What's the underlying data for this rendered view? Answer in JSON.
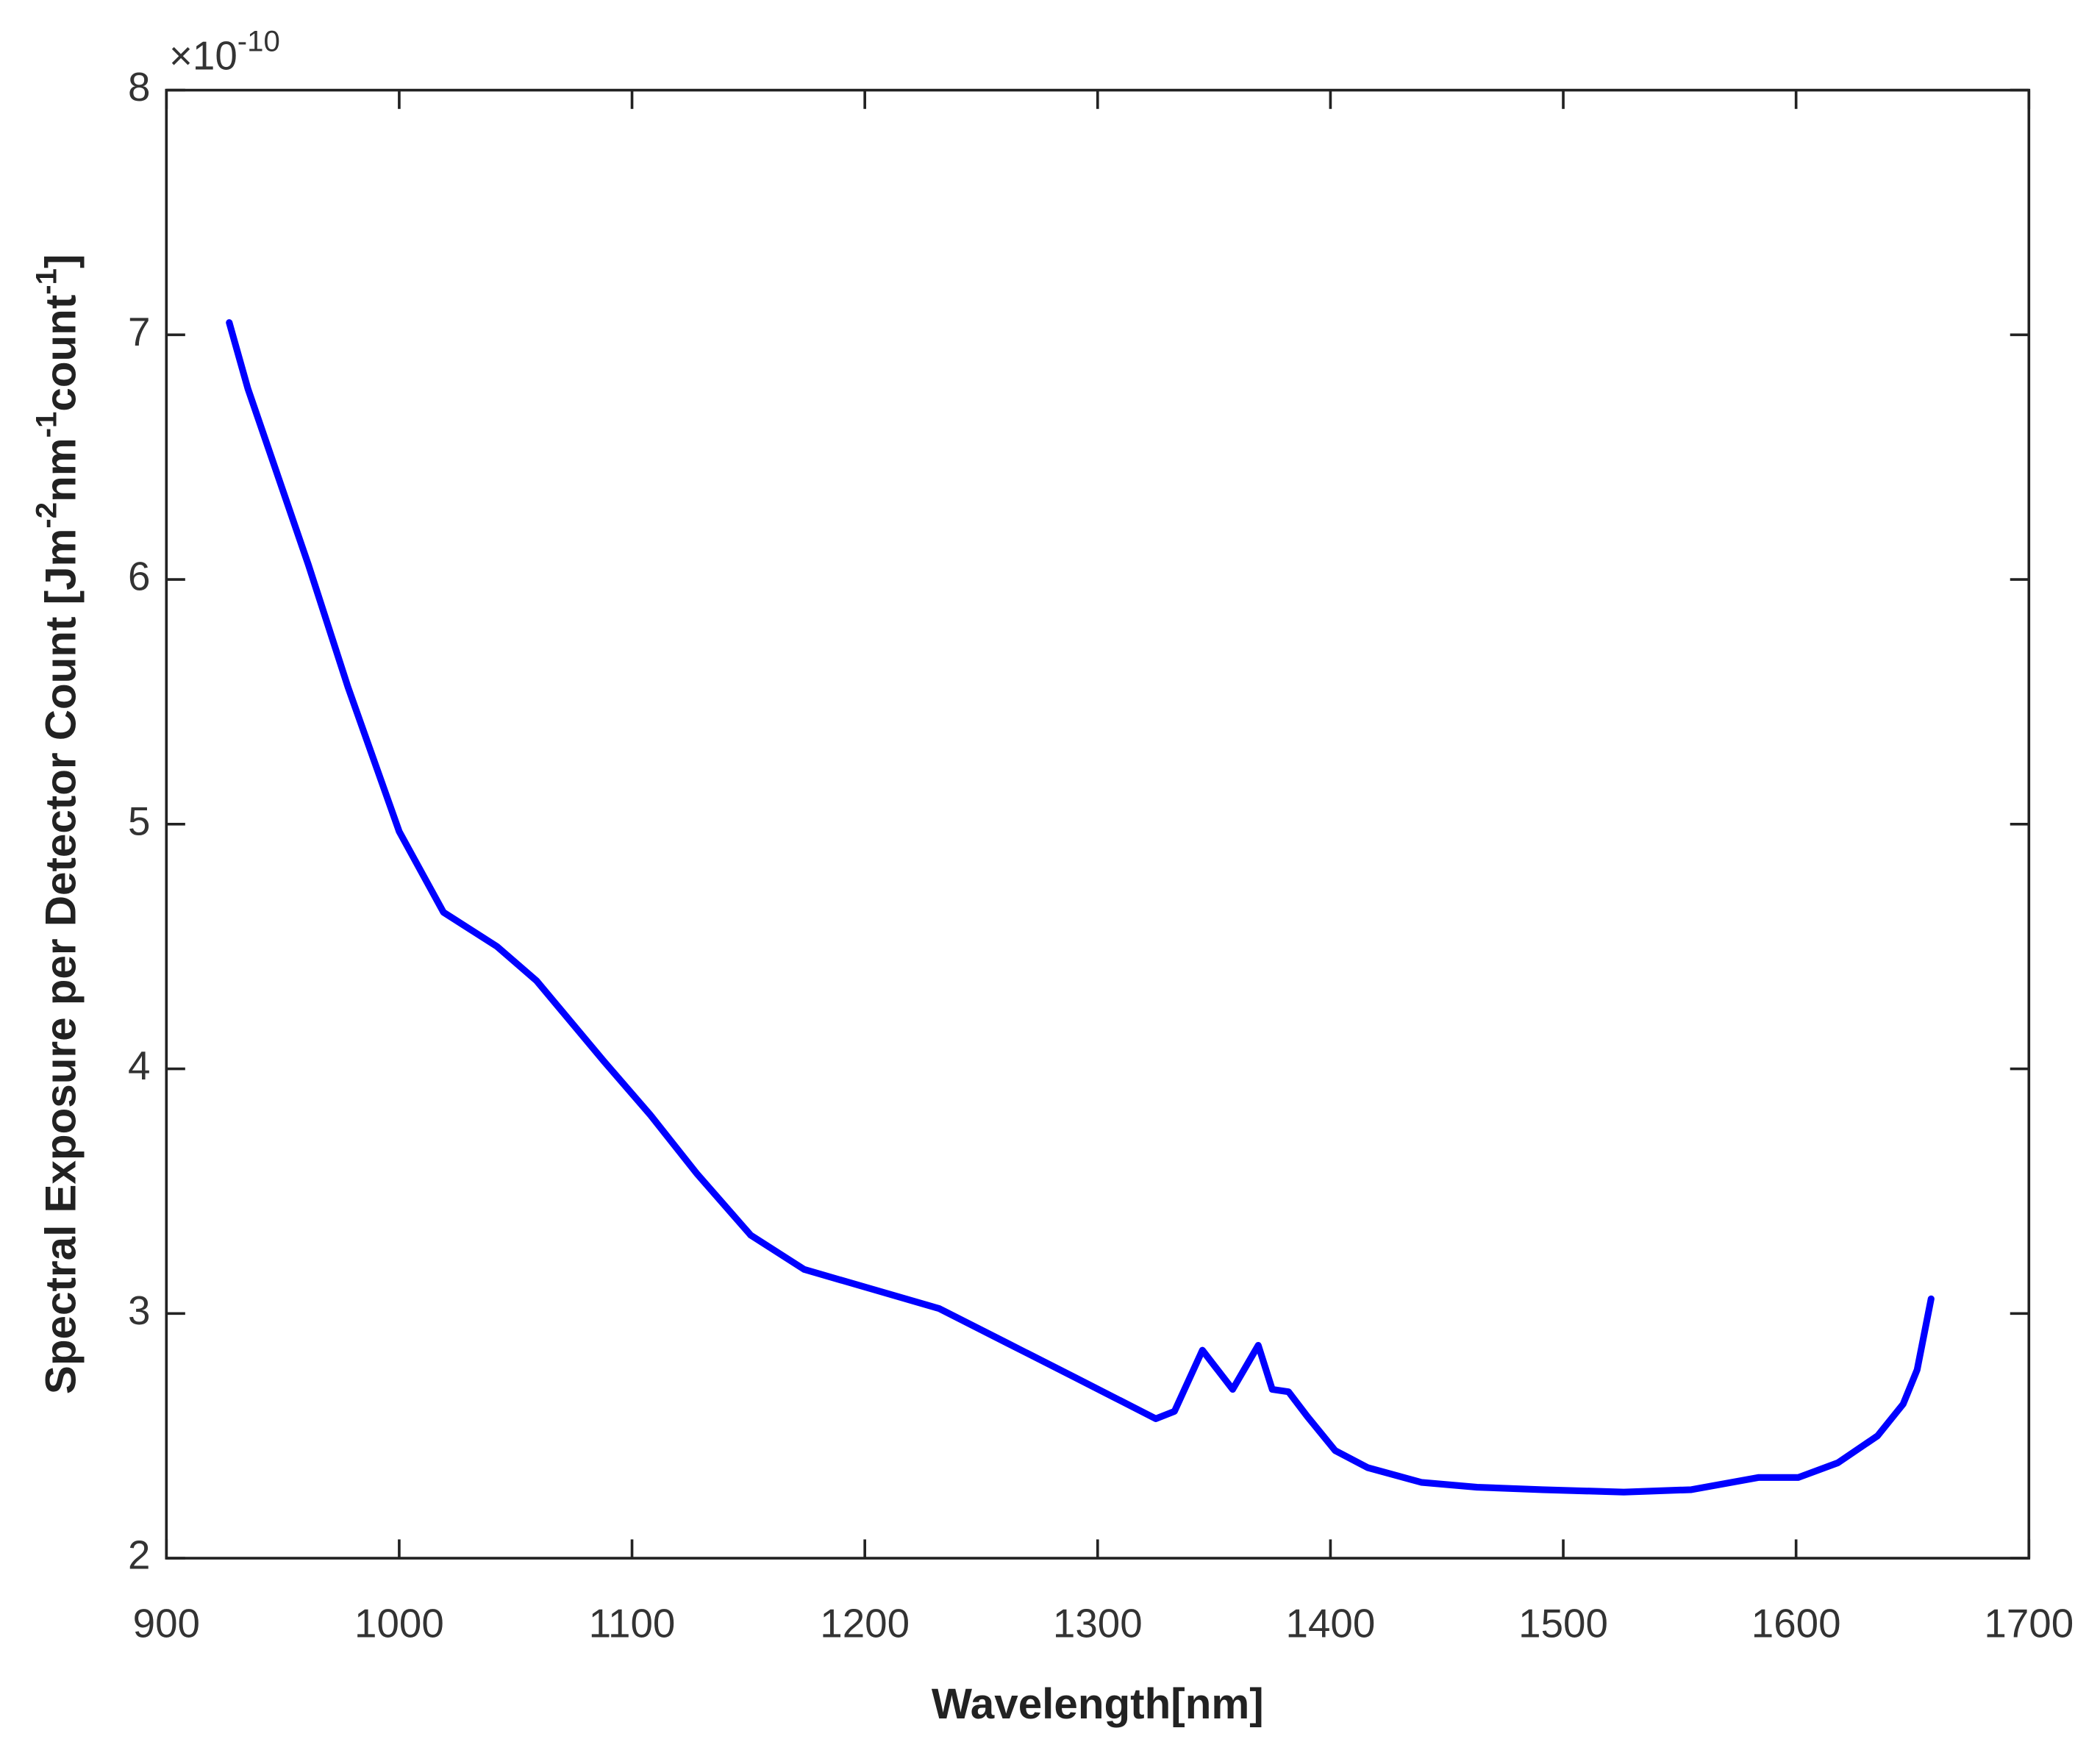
{
  "chart_data": {
    "type": "line",
    "xlabel": "Wavelength[nm]",
    "ylabel": [
      "Spectral Exposure per Detector Count [Jm",
      "-2",
      "nm",
      "-1",
      "count",
      "-1",
      "]"
    ],
    "y_exponent": [
      "×10",
      "-10"
    ],
    "xlim": [
      900,
      1700
    ],
    "xticks": [
      900,
      1000,
      1100,
      1200,
      1300,
      1400,
      1500,
      1600,
      1700
    ],
    "ylim": [
      2,
      8
    ],
    "yticks": [
      2,
      3,
      4,
      5,
      6,
      7,
      8
    ],
    "series": [
      {
        "color": "#0000ff",
        "x": [
          927,
          935,
          961,
          978,
          1000,
          1019,
          1042,
          1059,
          1088,
          1108,
          1128,
          1151,
          1174,
          1203,
          1232,
          1261,
          1290,
          1325,
          1333,
          1345,
          1358,
          1369,
          1375,
          1382,
          1390,
          1402,
          1416,
          1439,
          1463,
          1491,
          1526,
          1555,
          1584,
          1601,
          1618,
          1635,
          1646,
          1652,
          1658
        ],
        "values": [
          7.05,
          6.78,
          6.06,
          5.56,
          4.97,
          4.64,
          4.5,
          4.36,
          4.03,
          3.81,
          3.57,
          3.32,
          3.18,
          3.1,
          3.02,
          2.88,
          2.74,
          2.57,
          2.6,
          2.85,
          2.69,
          2.87,
          2.69,
          2.68,
          2.58,
          2.44,
          2.37,
          2.31,
          2.29,
          2.28,
          2.27,
          2.28,
          2.33,
          2.33,
          2.39,
          2.5,
          2.63,
          2.77,
          3.06
        ]
      }
    ]
  }
}
